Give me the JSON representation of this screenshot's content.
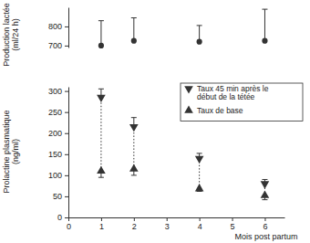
{
  "chart_data": [
    {
      "type": "scatter",
      "ylabel": "Production lactée (ml/24 h)",
      "x": [
        1,
        2,
        4,
        6
      ],
      "values": [
        700,
        725,
        720,
        725
      ],
      "errors": [
        130,
        120,
        85,
        165
      ],
      "xlim": [
        0,
        6.6
      ],
      "ylim": [
        690,
        900
      ],
      "yticks": [
        700,
        800
      ],
      "tick_labels": "y",
      "marker": "circle",
      "color": "#333333"
    },
    {
      "type": "scatter",
      "ylabel": "Prolactine plasmatique (ng/ml)",
      "xlabel": "Mois post partum",
      "x": [
        1,
        2,
        4,
        6
      ],
      "series": [
        {
          "name": "Taux 45 min après le début de la tétée",
          "marker": "triangle-down",
          "color": "#333333",
          "values": [
            285,
            215,
            140,
            80
          ],
          "errors": [
            20,
            22,
            12,
            10
          ]
        },
        {
          "name": "Taux de base",
          "marker": "triangle-up",
          "color": "#333333",
          "values": [
            110,
            115,
            68,
            52
          ],
          "errors": [
            15,
            15,
            6,
            10
          ]
        }
      ],
      "xlim": [
        0,
        6.6
      ],
      "ylim": [
        0,
        310
      ],
      "xticks": [
        0,
        1,
        2,
        3,
        4,
        5,
        6
      ],
      "yticks": [
        0,
        50,
        100,
        150,
        200,
        250,
        300
      ],
      "legend": "upper right",
      "line_style": "dotted"
    }
  ]
}
